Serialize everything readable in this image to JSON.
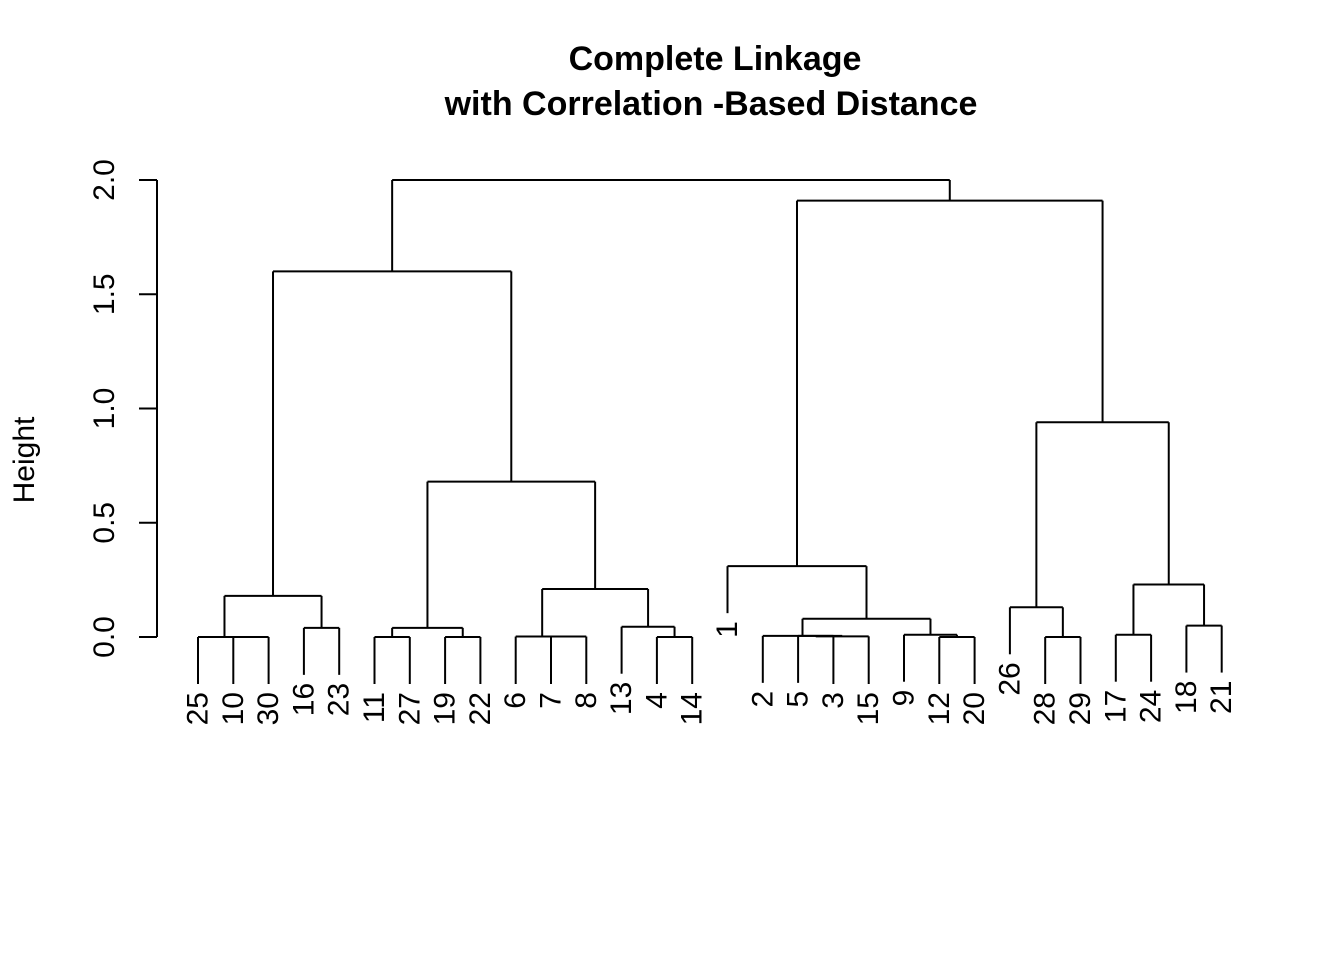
{
  "chart_data": {
    "type": "dendrogram",
    "title_line1": "Complete Linkage",
    "title_line2": "with Correlation -Based Distance",
    "xlabel": "",
    "ylabel": "Height",
    "ylim": [
      0,
      2.0
    ],
    "yticks": [
      0.0,
      0.5,
      1.0,
      1.5,
      2.0
    ],
    "ytick_labels": [
      "0.0",
      "0.5",
      "1.0",
      "1.5",
      "2.0"
    ],
    "leaves": [
      {
        "label": "25",
        "height": 0.0
      },
      {
        "label": "10",
        "height": 0.0
      },
      {
        "label": "30",
        "height": 0.0
      },
      {
        "label": "16",
        "height": 0.04
      },
      {
        "label": "23",
        "height": 0.04
      },
      {
        "label": "11",
        "height": 0.0
      },
      {
        "label": "27",
        "height": 0.0
      },
      {
        "label": "19",
        "height": 0.0
      },
      {
        "label": "22",
        "height": 0.0
      },
      {
        "label": "6",
        "height": 0.0
      },
      {
        "label": "7",
        "height": 0.0
      },
      {
        "label": "8",
        "height": 0.0
      },
      {
        "label": "13",
        "height": 0.045
      },
      {
        "label": "4",
        "height": 0.0
      },
      {
        "label": "14",
        "height": 0.0
      },
      {
        "label": "1",
        "height": 0.31
      },
      {
        "label": "2",
        "height": 0.005
      },
      {
        "label": "5",
        "height": 0.005
      },
      {
        "label": "3",
        "height": 0.0
      },
      {
        "label": "15",
        "height": 0.0
      },
      {
        "label": "9",
        "height": 0.01
      },
      {
        "label": "12",
        "height": 0.0
      },
      {
        "label": "20",
        "height": 0.0
      },
      {
        "label": "26",
        "height": 0.13
      },
      {
        "label": "28",
        "height": 0.0
      },
      {
        "label": "29",
        "height": 0.0
      },
      {
        "label": "17",
        "height": 0.01
      },
      {
        "label": "24",
        "height": 0.01
      },
      {
        "label": "18",
        "height": 0.05
      },
      {
        "label": "21",
        "height": 0.05
      }
    ],
    "merges": [
      {
        "id": "m10_30",
        "children": [
          "10",
          "30"
        ],
        "height": 0.0
      },
      {
        "id": "m25",
        "children": [
          "25",
          "m10_30"
        ],
        "height": 0.0
      },
      {
        "id": "m16_23",
        "children": [
          "16",
          "23"
        ],
        "height": 0.04
      },
      {
        "id": "mA",
        "children": [
          "m25",
          "m16_23"
        ],
        "height": 0.18
      },
      {
        "id": "m11_27",
        "children": [
          "11",
          "27"
        ],
        "height": 0.0
      },
      {
        "id": "m19_22",
        "children": [
          "19",
          "22"
        ],
        "height": 0.0
      },
      {
        "id": "mB1",
        "children": [
          "m11_27",
          "m19_22"
        ],
        "height": 0.04
      },
      {
        "id": "m7_8",
        "children": [
          "7",
          "8"
        ],
        "height": 0.002
      },
      {
        "id": "m6",
        "children": [
          "6",
          "m7_8"
        ],
        "height": 0.002
      },
      {
        "id": "m4_14",
        "children": [
          "4",
          "14"
        ],
        "height": 0.0
      },
      {
        "id": "m13",
        "children": [
          "13",
          "m4_14"
        ],
        "height": 0.045
      },
      {
        "id": "mB2",
        "children": [
          "m6",
          "m13"
        ],
        "height": 0.21
      },
      {
        "id": "mB",
        "children": [
          "mB1",
          "mB2"
        ],
        "height": 0.68
      },
      {
        "id": "mLeft",
        "children": [
          "mA",
          "mB"
        ],
        "height": 1.6
      },
      {
        "id": "m5_3",
        "children": [
          "5",
          "3"
        ],
        "height": 0.005
      },
      {
        "id": "m5_3_15",
        "children": [
          "m5_3",
          "15"
        ],
        "height": 0.003
      },
      {
        "id": "m2",
        "children": [
          "2",
          "m5_3_15"
        ],
        "height": 0.005
      },
      {
        "id": "m12_20",
        "children": [
          "12",
          "20"
        ],
        "height": 0.0
      },
      {
        "id": "m9",
        "children": [
          "9",
          "m12_20"
        ],
        "height": 0.01
      },
      {
        "id": "mC2",
        "children": [
          "m2",
          "m9"
        ],
        "height": 0.08
      },
      {
        "id": "mC",
        "children": [
          "1",
          "mC2"
        ],
        "height": 0.31
      },
      {
        "id": "m28_29",
        "children": [
          "28",
          "29"
        ],
        "height": 0.0
      },
      {
        "id": "m26",
        "children": [
          "26",
          "m28_29"
        ],
        "height": 0.13
      },
      {
        "id": "m17_24",
        "children": [
          "17",
          "24"
        ],
        "height": 0.01
      },
      {
        "id": "m18_21",
        "children": [
          "18",
          "21"
        ],
        "height": 0.05
      },
      {
        "id": "mD2",
        "children": [
          "m17_24",
          "m18_21"
        ],
        "height": 0.23
      },
      {
        "id": "mD",
        "children": [
          "m26",
          "mD2"
        ],
        "height": 0.94
      },
      {
        "id": "mRight",
        "children": [
          "mC",
          "mD"
        ],
        "height": 1.91
      },
      {
        "id": "mRoot",
        "children": [
          "mLeft",
          "mRight"
        ],
        "height": 2.0
      }
    ]
  }
}
